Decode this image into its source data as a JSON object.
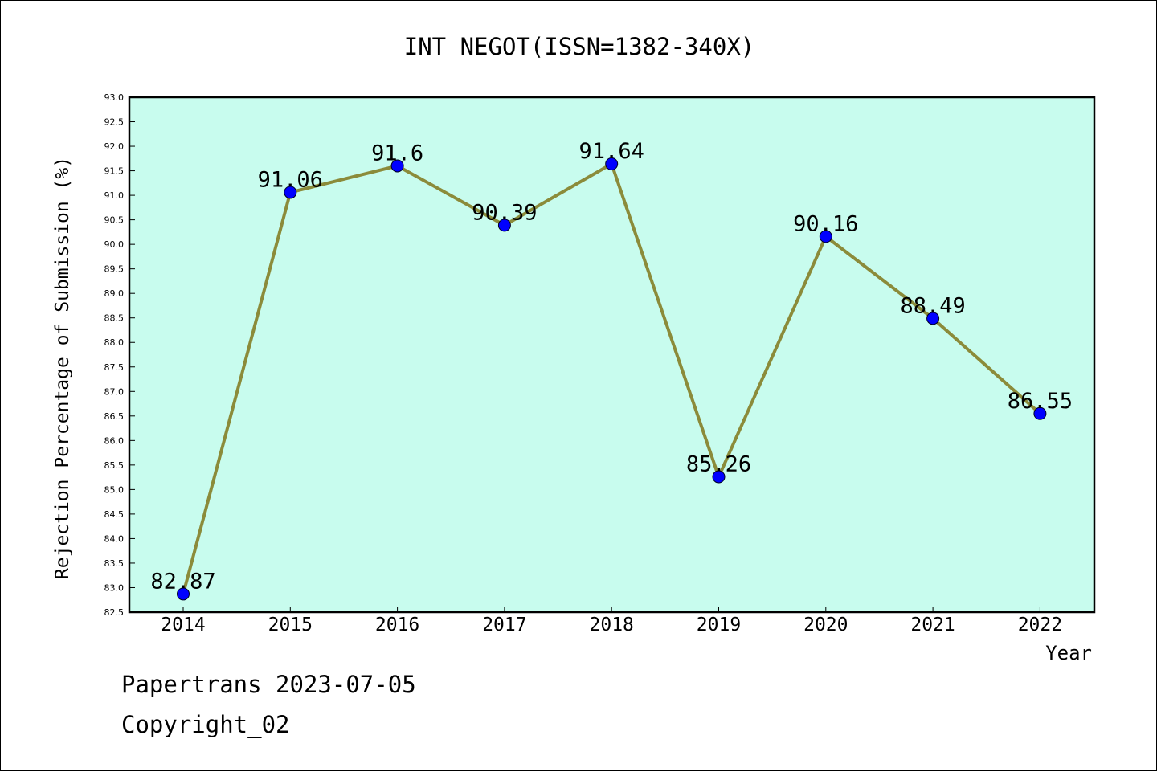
{
  "chart_data": {
    "type": "line",
    "title": "INT NEGOT(ISSN=1382-340X)",
    "xlabel": "Year",
    "ylabel": "Rejection Percentage of Submission (%)",
    "categories": [
      "2014",
      "2015",
      "2016",
      "2017",
      "2018",
      "2019",
      "2020",
      "2021",
      "2022"
    ],
    "values": [
      82.87,
      91.06,
      91.6,
      90.39,
      91.64,
      85.26,
      90.16,
      88.49,
      86.55
    ],
    "data_labels": [
      "82.87",
      "91.06",
      "91.6",
      "90.39",
      "91.64",
      "85.26",
      "90.16",
      "88.49",
      "86.55"
    ],
    "ylim": [
      82.5,
      93.0
    ],
    "ytick_step": 0.5,
    "grid": false,
    "colors": {
      "plot_background": "#c8fcee",
      "line": "#8b8b3a",
      "marker": "#0000ff"
    }
  },
  "footer": {
    "line1": "Papertrans 2023-07-05",
    "line2": "Copyright_02"
  }
}
